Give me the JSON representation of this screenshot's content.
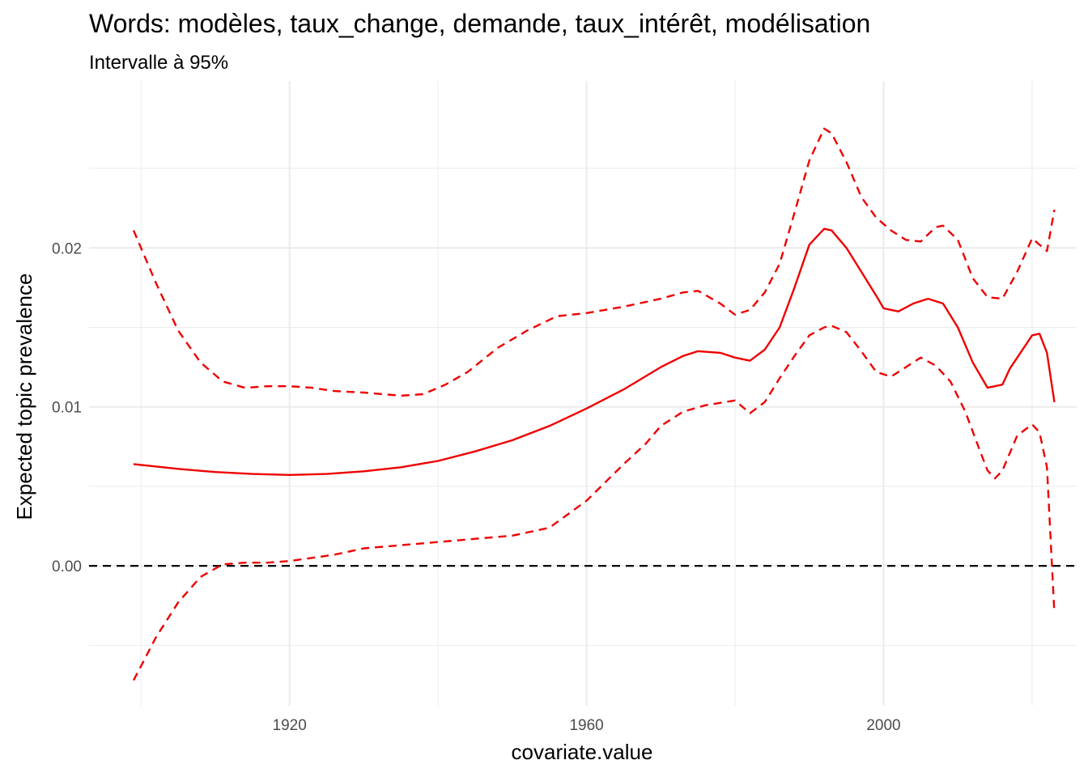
{
  "chart_data": {
    "type": "line",
    "title": "Words: modèles, taux_change, demande, taux_intérêt, modélisation",
    "subtitle": "Intervalle à 95%",
    "xlabel": "covariate.value",
    "ylabel": "Expected topic prevalence",
    "xlim": [
      1893,
      2026
    ],
    "ylim": [
      -0.0088,
      0.0305
    ],
    "x_ticks": [
      1920,
      1960,
      2000
    ],
    "x_tick_labels": [
      "1920",
      "1960",
      "2000"
    ],
    "y_ticks": [
      0.0,
      0.01,
      0.02
    ],
    "y_tick_labels": [
      "0.00",
      "0.01",
      "0.02"
    ],
    "grid": true,
    "legend": "none",
    "reference_line": {
      "y": 0,
      "style": "dashed",
      "color": "#000000"
    },
    "series_color": "#ee0000",
    "series": [
      {
        "role": "estimate",
        "style": "solid",
        "x": [
          1899,
          1905,
          1910,
          1915,
          1920,
          1925,
          1930,
          1935,
          1940,
          1945,
          1950,
          1955,
          1960,
          1965,
          1970,
          1973,
          1975,
          1978,
          1980,
          1982,
          1984,
          1986,
          1988,
          1990,
          1992,
          1993,
          1995,
          1997,
          1999,
          2000,
          2002,
          2004,
          2006,
          2008,
          2010,
          2012,
          2014,
          2016,
          2017,
          2019,
          2020,
          2021,
          2022,
          2023
        ],
        "y": [
          0.0064,
          0.0061,
          0.0059,
          0.00578,
          0.00572,
          0.00578,
          0.00595,
          0.0062,
          0.0066,
          0.0072,
          0.0079,
          0.0088,
          0.0099,
          0.0111,
          0.0125,
          0.0132,
          0.0135,
          0.0134,
          0.0131,
          0.0129,
          0.0136,
          0.015,
          0.0175,
          0.0202,
          0.0212,
          0.0211,
          0.02,
          0.0185,
          0.017,
          0.0162,
          0.016,
          0.0165,
          0.0168,
          0.0165,
          0.015,
          0.0128,
          0.0112,
          0.0114,
          0.0124,
          0.0138,
          0.0145,
          0.0146,
          0.0134,
          0.0103
        ]
      },
      {
        "role": "upper",
        "style": "dashed",
        "x": [
          1899,
          1902,
          1905,
          1908,
          1911,
          1914,
          1917,
          1920,
          1923,
          1926,
          1930,
          1935,
          1938,
          1941,
          1944,
          1948,
          1952,
          1956,
          1960,
          1965,
          1970,
          1973,
          1975,
          1978,
          1980,
          1982,
          1984,
          1986,
          1988,
          1990,
          1992,
          1993,
          1995,
          1997,
          1999,
          2001,
          2003,
          2005,
          2007,
          2008,
          2010,
          2012,
          2014,
          2016,
          2018,
          2020,
          2022,
          2023
        ],
        "y": [
          0.0211,
          0.0178,
          0.0148,
          0.0128,
          0.0116,
          0.0112,
          0.0113,
          0.0113,
          0.0112,
          0.011,
          0.0109,
          0.0107,
          0.0108,
          0.0114,
          0.0122,
          0.0137,
          0.0148,
          0.0157,
          0.0159,
          0.0163,
          0.0168,
          0.0172,
          0.0173,
          0.0165,
          0.0158,
          0.0161,
          0.0172,
          0.019,
          0.0222,
          0.0255,
          0.0275,
          0.0272,
          0.0254,
          0.0232,
          0.0219,
          0.0211,
          0.0205,
          0.0204,
          0.0213,
          0.0214,
          0.0205,
          0.0181,
          0.0169,
          0.0168,
          0.0185,
          0.0206,
          0.0198,
          0.0224
        ]
      },
      {
        "role": "lower",
        "style": "dashed",
        "x": [
          1899,
          1902,
          1905,
          1908,
          1911,
          1914,
          1917,
          1920,
          1923,
          1926,
          1930,
          1935,
          1940,
          1945,
          1950,
          1955,
          1960,
          1965,
          1968,
          1970,
          1973,
          1976,
          1980,
          1982,
          1984,
          1986,
          1988,
          1990,
          1992,
          1993,
          1995,
          1997,
          1999,
          2001,
          2003,
          2005,
          2007,
          2009,
          2011,
          2013,
          2014,
          2015,
          2016,
          2018,
          2020,
          2021,
          2022,
          2023
        ],
        "y": [
          -0.0072,
          -0.0045,
          -0.0023,
          -0.0007,
          0.0001,
          0.0002,
          0.0002,
          0.0003,
          0.0005,
          0.0007,
          0.0011,
          0.0013,
          0.0015,
          0.0017,
          0.0019,
          0.0024,
          0.0041,
          0.0064,
          0.0077,
          0.0088,
          0.0097,
          0.0101,
          0.0104,
          0.0096,
          0.0103,
          0.0118,
          0.0132,
          0.0145,
          0.015,
          0.0151,
          0.0147,
          0.0135,
          0.0122,
          0.0119,
          0.0125,
          0.0131,
          0.0126,
          0.0116,
          0.0097,
          0.0072,
          0.006,
          0.0055,
          0.006,
          0.0082,
          0.0089,
          0.0084,
          0.0062,
          -0.003
        ]
      }
    ]
  }
}
